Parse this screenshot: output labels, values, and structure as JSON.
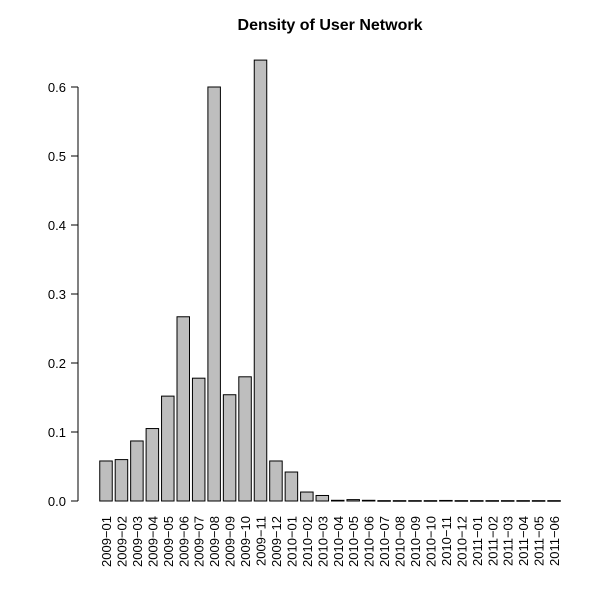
{
  "chart_data": {
    "type": "bar",
    "title": "Density of User Network",
    "xlabel": "",
    "ylabel": "",
    "ylim": [
      0,
      0.65
    ],
    "yticks": [
      0.0,
      0.1,
      0.2,
      0.3,
      0.4,
      0.5,
      0.6
    ],
    "ytick_labels": [
      "0.0",
      "0.1",
      "0.2",
      "0.3",
      "0.4",
      "0.5",
      "0.6"
    ],
    "categories": [
      "2009-01",
      "2009-02",
      "2009-03",
      "2009-04",
      "2009-05",
      "2009-06",
      "2009-07",
      "2009-08",
      "2009-09",
      "2009-10",
      "2009-11",
      "2009-12",
      "2010-01",
      "2010-02",
      "2010-03",
      "2010-04",
      "2010-05",
      "2010-06",
      "2010-07",
      "2010-08",
      "2010-09",
      "2010-10",
      "2010-11",
      "2010-12",
      "2011-01",
      "2011-02",
      "2011-03",
      "2011-04",
      "2011-05",
      "2011-06"
    ],
    "category_labels": [
      "2009−01",
      "2009−02",
      "2009−03",
      "2009−04",
      "2009−05",
      "2009−06",
      "2009−07",
      "2009−08",
      "2009−09",
      "2009−10",
      "2009−11",
      "2009−12",
      "2010−01",
      "2010−02",
      "2010−03",
      "2010−04",
      "2010−05",
      "2010−06",
      "2010−07",
      "2010−08",
      "2010−09",
      "2010−10",
      "2010−11",
      "2010−12",
      "2011−01",
      "2011−02",
      "2011−03",
      "2011−04",
      "2011−05",
      "2011−06"
    ],
    "label_every": 1,
    "values": [
      0.058,
      0.06,
      0.087,
      0.105,
      0.152,
      0.267,
      0.178,
      0.6,
      0.154,
      0.18,
      0.639,
      0.058,
      0.042,
      0.013,
      0.008,
      0.001,
      0.002,
      0.001,
      0.0005,
      0.0005,
      0.0005,
      0.0005,
      0.0008,
      0.0005,
      0.0005,
      0.0005,
      0.0005,
      0.0005,
      0.0005,
      0.0005
    ],
    "bar_color": "#bebebe",
    "grid": false,
    "legend": "none"
  }
}
